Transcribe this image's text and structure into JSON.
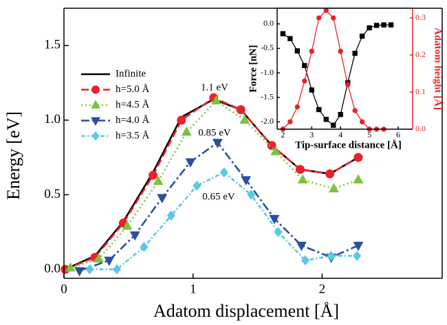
{
  "chart_data": [
    {
      "type": "line",
      "x_label": "Adatom displacement [Å]",
      "y_label": "Energy [eV]",
      "xlim": [
        0,
        2.93
      ],
      "ylim": [
        -0.06,
        1.75
      ],
      "xticks": [
        0,
        1,
        2
      ],
      "yticks": [
        {
          "value": 0,
          "label": "0.0"
        },
        0.5,
        {
          "value": 1,
          "label": "1.0"
        },
        1.5
      ],
      "legend": "upper left",
      "annotations": [
        "1.1 eV",
        "0.85 eV",
        "0.65 eV"
      ],
      "series": [
        {
          "name": "Infinite",
          "color": "#000000",
          "marker": "none",
          "dash": "none",
          "x": [
            0.01,
            0.24,
            0.46,
            0.69,
            0.91,
            1.16,
            1.37,
            1.61,
            1.83,
            2.06,
            2.28
          ],
          "values": [
            0.0,
            0.09,
            0.32,
            0.65,
            1.02,
            1.14,
            1.07,
            0.83,
            0.67,
            0.64,
            0.75
          ]
        },
        {
          "name": "h=5.0 Å",
          "color": "#e8222a",
          "marker": "circle",
          "dash": "11,5",
          "x": [
            0.01,
            0.24,
            0.46,
            0.69,
            0.91,
            1.16,
            1.37,
            1.61,
            1.83,
            2.06,
            2.28
          ],
          "values": [
            0.0,
            0.08,
            0.31,
            0.63,
            1.0,
            1.15,
            1.07,
            0.83,
            0.67,
            0.64,
            0.75
          ]
        },
        {
          "name": "h=4.5 Å",
          "color": "#7cc242",
          "marker": "triangle-up",
          "dash": "2,4",
          "x": [
            0.05,
            0.27,
            0.49,
            0.73,
            0.95,
            1.18,
            1.4,
            1.64,
            1.85,
            2.09,
            2.28
          ],
          "values": [
            0.01,
            0.07,
            0.29,
            0.59,
            0.92,
            1.13,
            1.0,
            0.79,
            0.6,
            0.54,
            0.6
          ]
        },
        {
          "name": "h=4.0 Å",
          "color": "#2a4f9f",
          "marker": "triangle-down",
          "dash": "12,4,3,4",
          "x": [
            0.12,
            0.35,
            0.55,
            0.76,
            0.98,
            1.19,
            1.41,
            1.63,
            1.84,
            2.07,
            2.28
          ],
          "values": [
            -0.01,
            0.06,
            0.23,
            0.48,
            0.72,
            0.85,
            0.6,
            0.34,
            0.16,
            0.08,
            0.16
          ]
        },
        {
          "name": "h=3.5 Å",
          "color": "#5bc8e6",
          "marker": "diamond",
          "dash": "6,3,2,3",
          "x": [
            0.2,
            0.41,
            0.62,
            0.83,
            1.03,
            1.24,
            1.45,
            1.66,
            1.87,
            2.07,
            2.27
          ],
          "values": [
            0.0,
            0.0,
            0.15,
            0.36,
            0.56,
            0.65,
            0.5,
            0.25,
            0.06,
            0.09,
            0.09
          ]
        }
      ]
    },
    {
      "type": "line",
      "x_label": "Tip-surface distance [Å]",
      "y_label": "Force [nN]",
      "y2_label": "Adatom height [Å]",
      "y2_color": "#e8222a",
      "xlim": [
        1.8,
        6.5
      ],
      "ylim": [
        -2.15,
        0.32
      ],
      "y2lim": [
        0,
        0.326
      ],
      "xticks": [
        2,
        3,
        4,
        5,
        6
      ],
      "yticks": [
        {
          "value": 0,
          "label": "0.0"
        },
        -0.5,
        {
          "value": -1,
          "label": "-1.0"
        },
        -1.5,
        {
          "value": -2,
          "label": "-2.0"
        }
      ],
      "y2ticks": [
        {
          "value": 0,
          "label": "0.0"
        },
        0.1,
        0.2,
        0.3
      ],
      "series": [
        {
          "color": "#000000",
          "marker": "square",
          "dash": "none",
          "x": [
            2.0,
            2.25,
            2.5,
            2.75,
            3.0,
            3.25,
            3.5,
            3.75,
            4.0,
            4.25,
            4.5,
            4.75,
            5.0,
            5.25,
            5.5,
            5.75
          ],
          "values": [
            -0.2,
            -0.3,
            -0.55,
            -0.85,
            -1.35,
            -1.75,
            -1.95,
            -2.07,
            -1.85,
            -1.2,
            -0.6,
            -0.25,
            -0.08,
            -0.03,
            -0.02,
            -0.02
          ]
        },
        {
          "color": "#e8222a",
          "marker": "circle",
          "dash": "none",
          "axis": "y2",
          "x": [
            2.0,
            2.25,
            2.5,
            2.75,
            3.0,
            3.25,
            3.5,
            3.75,
            4.0,
            4.25,
            4.5,
            4.75,
            5.0,
            5.25,
            5.5
          ],
          "values": [
            0.0,
            0.02,
            0.06,
            0.13,
            0.21,
            0.3,
            0.32,
            0.3,
            0.21,
            0.12,
            0.05,
            0.02,
            0.0,
            0.0,
            0.0
          ]
        }
      ]
    }
  ]
}
